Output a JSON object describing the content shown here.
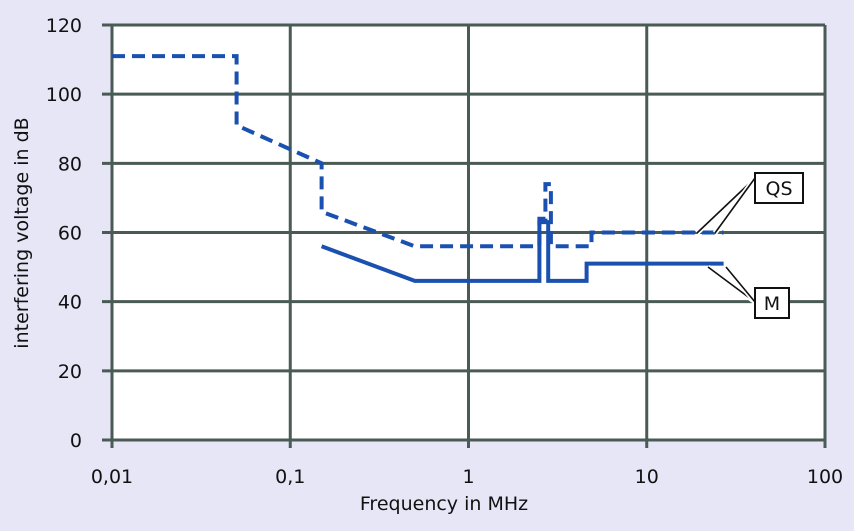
{
  "chart_data": {
    "type": "line",
    "x_scale": "log",
    "xlabel": "Frequency in MHz",
    "ylabel": "interfering voltage in dB",
    "xlim": [
      0.01,
      100
    ],
    "ylim": [
      0,
      120
    ],
    "x_ticks": [
      {
        "value": 0.01,
        "label": "0,01"
      },
      {
        "value": 0.1,
        "label": "0,1"
      },
      {
        "value": 1,
        "label": "1"
      },
      {
        "value": 10,
        "label": "10"
      },
      {
        "value": 100,
        "label": "100"
      }
    ],
    "y_ticks": [
      {
        "value": 0,
        "label": "0"
      },
      {
        "value": 20,
        "label": "20"
      },
      {
        "value": 40,
        "label": "40"
      },
      {
        "value": 60,
        "label": "60"
      },
      {
        "value": 80,
        "label": "80"
      },
      {
        "value": 100,
        "label": "100"
      },
      {
        "value": 120,
        "label": "120"
      }
    ],
    "grid": true,
    "background_color": "#e6e6f7",
    "grid_color": "#4a5a55",
    "series_color": "#1a50b0",
    "series": [
      {
        "name": "QS",
        "line_style": "dashed",
        "points": [
          [
            0.01,
            111
          ],
          [
            0.05,
            111
          ],
          [
            0.05,
            91
          ],
          [
            0.15,
            80
          ],
          [
            0.15,
            66
          ],
          [
            0.5,
            56
          ],
          [
            2.5,
            56
          ],
          [
            2.5,
            64
          ],
          [
            2.7,
            64
          ],
          [
            2.7,
            74
          ],
          [
            2.9,
            74
          ],
          [
            2.9,
            56
          ],
          [
            4.9,
            56
          ],
          [
            4.9,
            60
          ],
          [
            27,
            60
          ]
        ]
      },
      {
        "name": "M",
        "line_style": "solid",
        "points": [
          [
            0.15,
            56
          ],
          [
            0.5,
            46
          ],
          [
            2.5,
            46
          ],
          [
            2.5,
            63
          ],
          [
            2.8,
            63
          ],
          [
            2.8,
            46
          ],
          [
            4.6,
            46
          ],
          [
            4.6,
            51
          ],
          [
            27,
            51
          ]
        ]
      }
    ],
    "annotations": [
      {
        "text": "QS",
        "series": "QS"
      },
      {
        "text": "M",
        "series": "M"
      }
    ]
  }
}
